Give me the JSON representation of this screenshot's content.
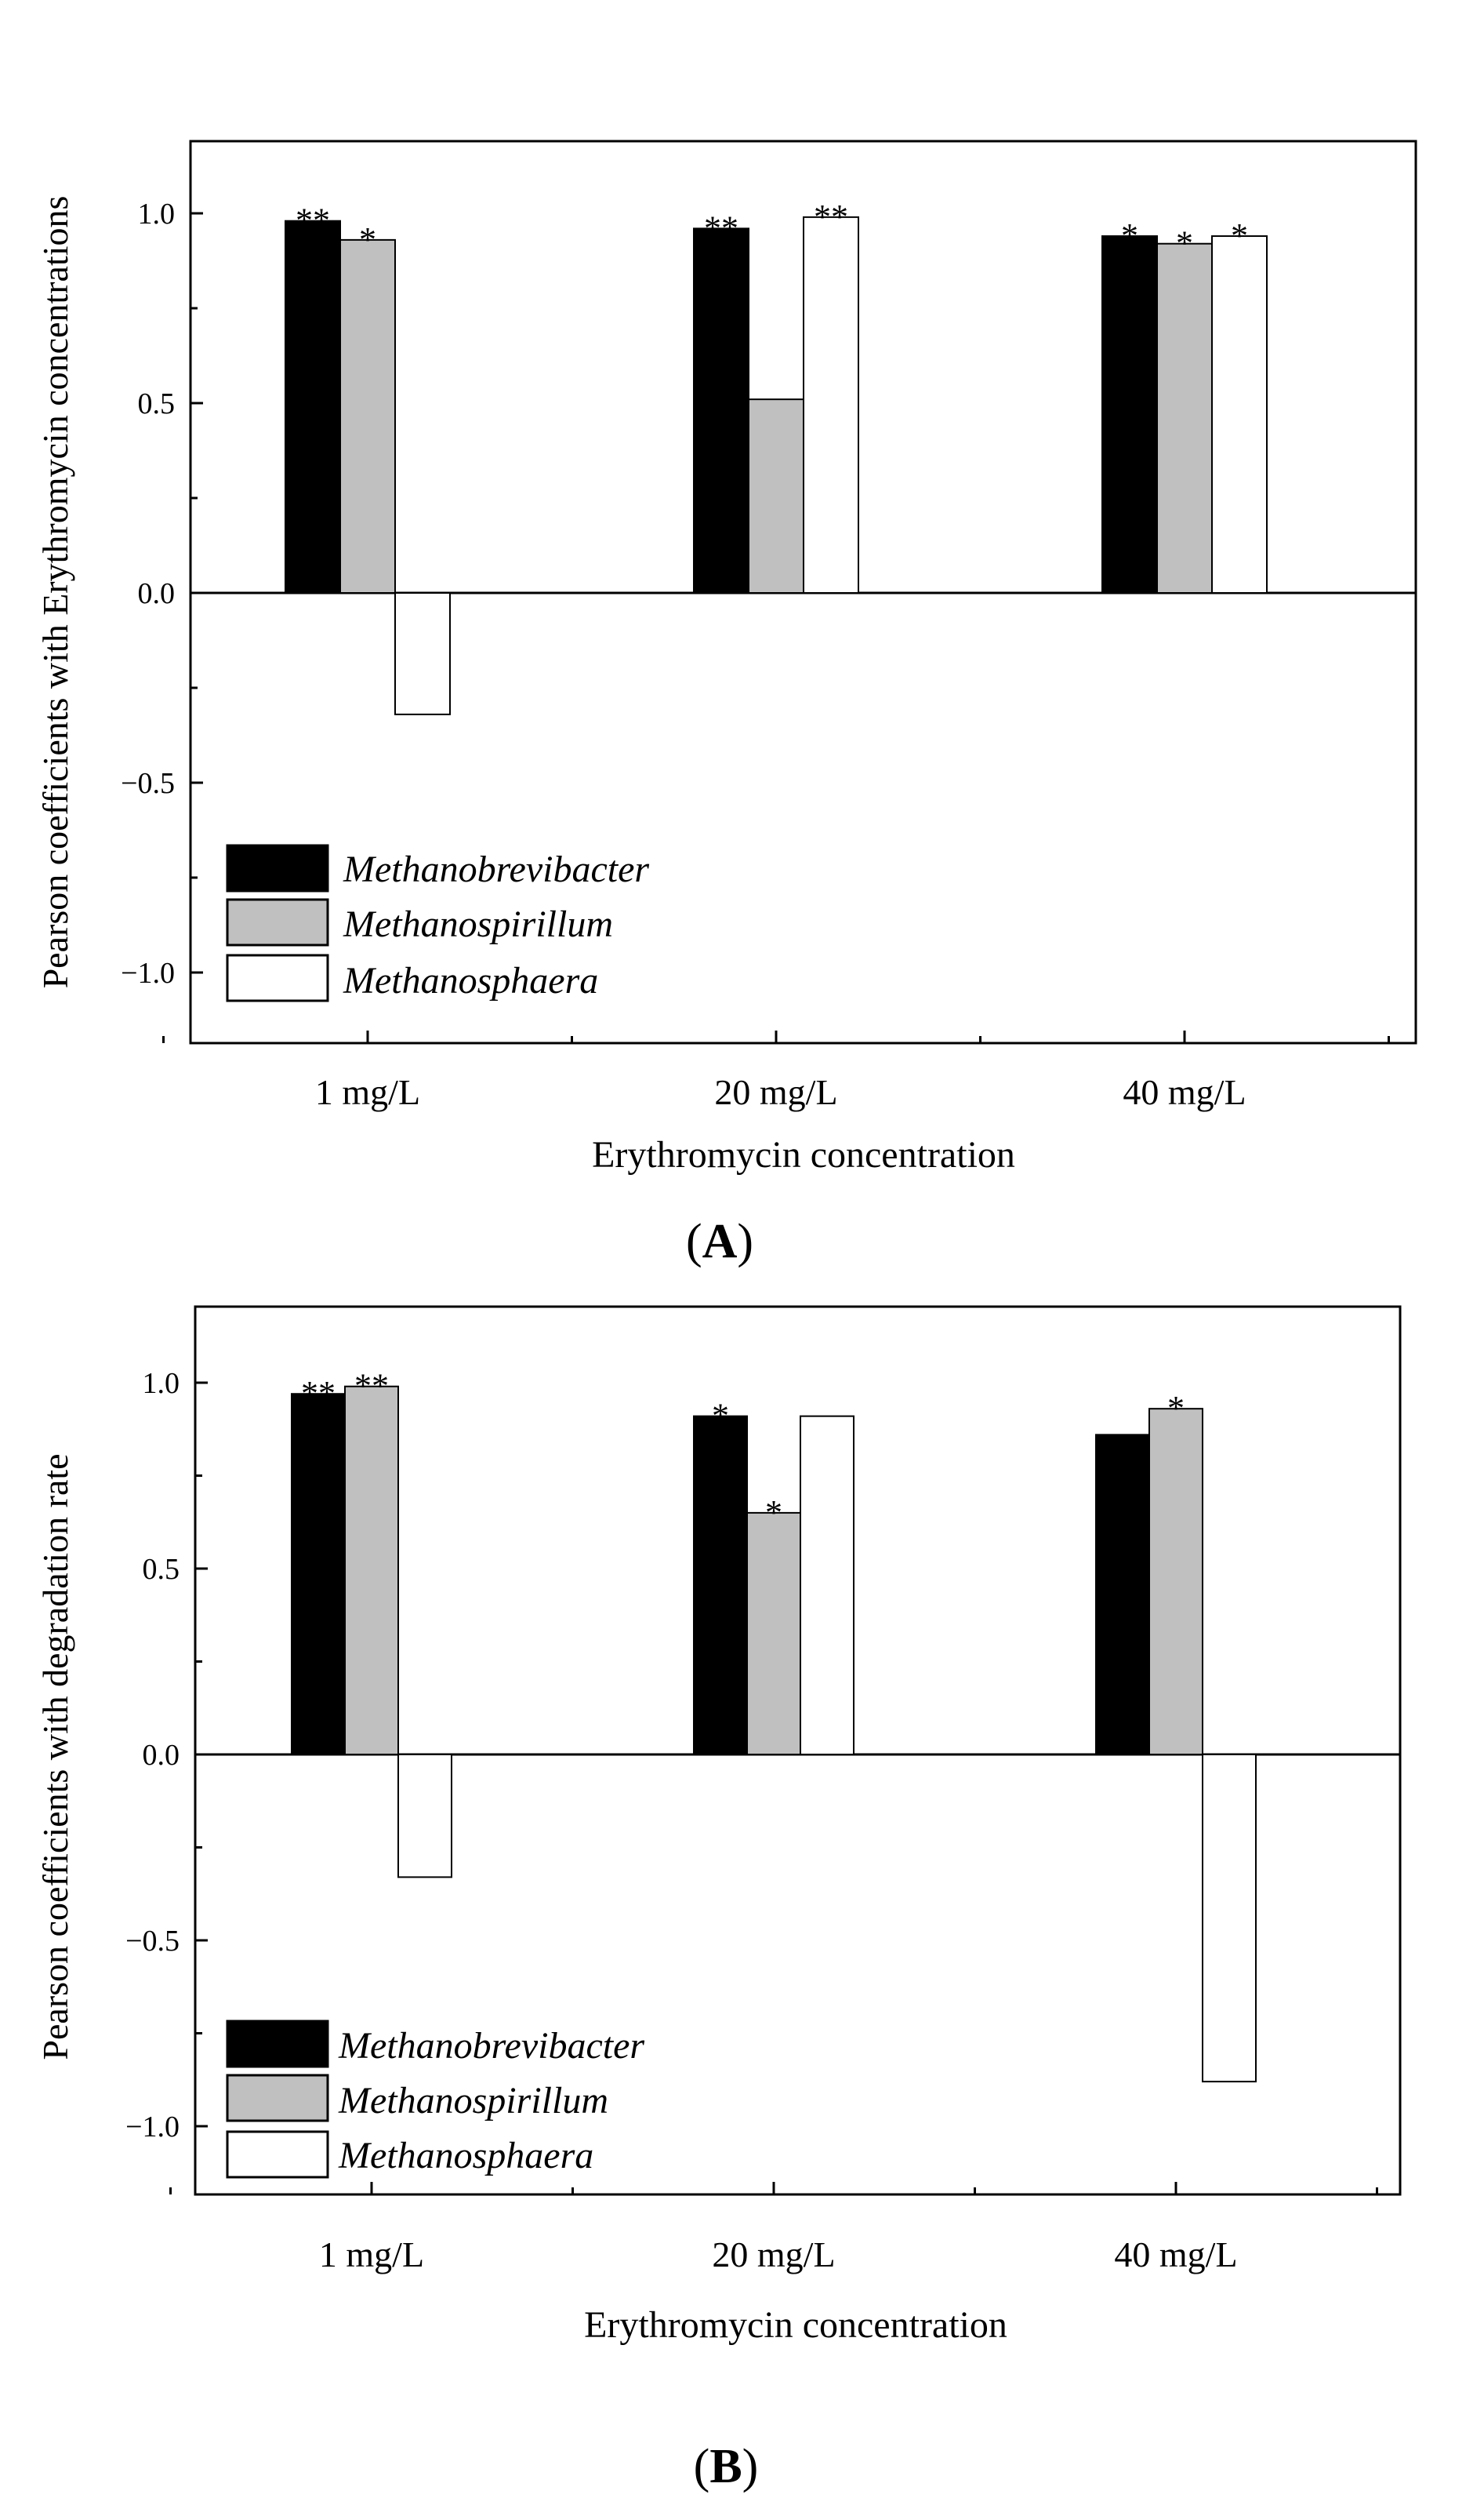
{
  "colors": {
    "Methanobrevibacter": "#000000",
    "Methanospirillum": "#c0c0c0",
    "Methanosphaera": "#ffffff"
  },
  "chart_data": [
    {
      "type": "bar",
      "panel_label": "A",
      "ylabel": "Pearson coefficients with Erythromycin concentrations",
      "xlabel": "Erythromycin concentration",
      "categories": [
        "1 mg/L",
        "20 mg/L",
        "40 mg/L"
      ],
      "ylim": [
        -1.2,
        1.2
      ],
      "yticks": [
        1.0,
        0.5,
        0.0,
        -0.5,
        -1.0
      ],
      "ytick_labels": [
        "1.0",
        "0.5",
        "0.0",
        "−0.5",
        "−1.0"
      ],
      "legend": [
        "Methanobrevibacter",
        "Methanospirillum",
        "Methanosphaera"
      ],
      "series": [
        {
          "name": "Methanobrevibacter",
          "values": [
            0.98,
            0.96,
            0.94
          ],
          "significance": [
            "**",
            "**",
            "*"
          ]
        },
        {
          "name": "Methanospirillum",
          "values": [
            0.93,
            0.51,
            0.92
          ],
          "significance": [
            "*",
            "",
            "*"
          ]
        },
        {
          "name": "Methanosphaera",
          "values": [
            -0.32,
            0.99,
            0.94
          ],
          "significance": [
            "",
            "**",
            "*"
          ]
        }
      ]
    },
    {
      "type": "bar",
      "panel_label": "B",
      "ylabel": "Pearson coefficients with degradation rate",
      "xlabel": "Erythromycin concentration",
      "categories": [
        "1 mg/L",
        "20 mg/L",
        "40 mg/L"
      ],
      "ylim": [
        -1.2,
        1.2
      ],
      "yticks": [
        1.0,
        0.5,
        0.0,
        -0.5,
        -1.0
      ],
      "ytick_labels": [
        "1.0",
        "0.5",
        "0.0",
        "−0.5",
        "−1.0"
      ],
      "legend": [
        "Methanobrevibacter",
        "Methanospirillum",
        "Methanosphaera"
      ],
      "series": [
        {
          "name": "Methanobrevibacter",
          "values": [
            0.97,
            0.91,
            0.86
          ],
          "significance": [
            "**",
            "*",
            ""
          ]
        },
        {
          "name": "Methanospirillum",
          "values": [
            0.99,
            0.65,
            0.93
          ],
          "significance": [
            "**",
            "*",
            "*"
          ]
        },
        {
          "name": "Methanosphaera",
          "values": [
            -0.33,
            0.91,
            -0.88
          ],
          "significance": [
            "",
            "",
            ""
          ]
        }
      ]
    }
  ]
}
